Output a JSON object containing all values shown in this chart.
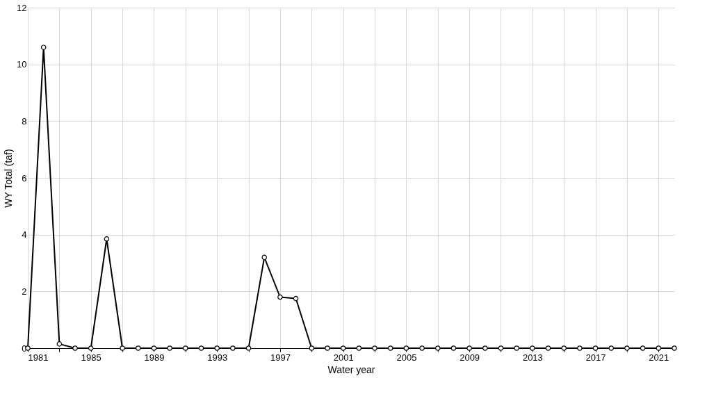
{
  "chart_data": {
    "type": "line",
    "xlabel": "Water year",
    "ylabel": "WY Total (taf)",
    "x": [
      1981,
      1982,
      1983,
      1984,
      1985,
      1986,
      1987,
      1988,
      1989,
      1990,
      1991,
      1992,
      1993,
      1994,
      1995,
      1996,
      1997,
      1998,
      1999,
      2000,
      2001,
      2002,
      2003,
      2004,
      2005,
      2006,
      2007,
      2008,
      2009,
      2010,
      2011,
      2012,
      2013,
      2014,
      2015,
      2016,
      2017,
      2018,
      2019,
      2020,
      2021,
      2022
    ],
    "series": [
      {
        "color": "#000000",
        "values": [
          0,
          10.6,
          0.15,
          0,
          0,
          3.85,
          0,
          0,
          0,
          0,
          0,
          0,
          0,
          0,
          0,
          3.2,
          1.8,
          1.75,
          0,
          0,
          0,
          0,
          0,
          0,
          0,
          0,
          0,
          0,
          0,
          0,
          0,
          0,
          0,
          0,
          0,
          0,
          0,
          0,
          0,
          0,
          0,
          0
        ]
      }
    ],
    "xlim": [
      1981,
      2022
    ],
    "xticks": [
      1981,
      {
        "value": 1983,
        "label": null
      },
      1985,
      {
        "value": 1987,
        "label": null
      },
      1989,
      {
        "value": 1991,
        "label": null
      },
      1993,
      {
        "value": 1995,
        "label": null
      },
      1997,
      {
        "value": 1999,
        "label": null
      },
      2001,
      {
        "value": 2003,
        "label": null
      },
      2005,
      {
        "value": 2007,
        "label": null
      },
      2009,
      {
        "value": 2011,
        "label": null
      },
      2013,
      {
        "value": 2015,
        "label": null
      },
      2017,
      {
        "value": 2019,
        "label": null
      },
      2021
    ],
    "ylim": [
      0,
      12
    ],
    "yticks": [
      0,
      2,
      4,
      6,
      8,
      10,
      12
    ],
    "grid": true,
    "marker": "circle",
    "line_style": "solid"
  }
}
